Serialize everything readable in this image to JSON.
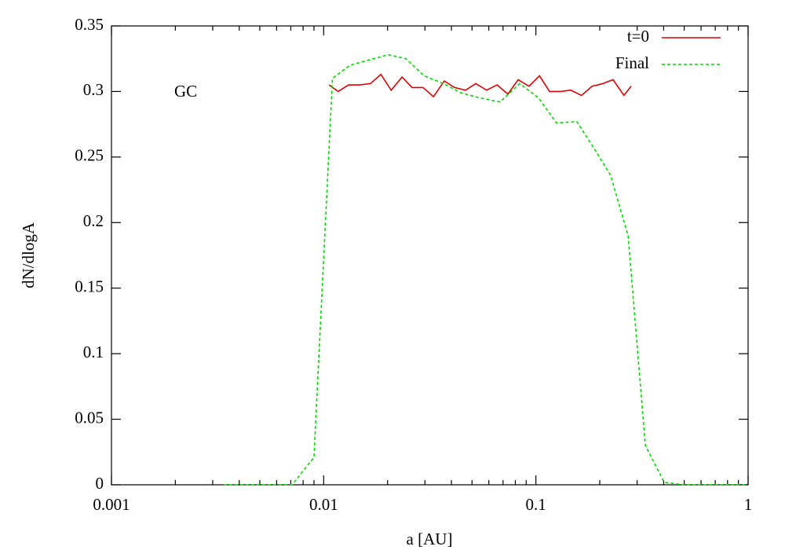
{
  "chart_data": {
    "type": "line",
    "xlabel": "a [AU]",
    "ylabel": "dN/dlogA",
    "annotation": "GC",
    "xscale": "log",
    "xlim": [
      0.001,
      1
    ],
    "xticks": [
      0.001,
      0.01,
      0.1,
      1
    ],
    "ylim": [
      0,
      0.35
    ],
    "yticks": [
      0,
      0.05,
      0.1,
      0.15,
      0.2,
      0.25,
      0.3,
      0.35
    ],
    "legend": "upper right",
    "series": [
      {
        "name": "t=0",
        "color": "#e00000",
        "dash": false,
        "x": [
          0.0106,
          0.0117,
          0.0131,
          0.0148,
          0.0166,
          0.0186,
          0.0208,
          0.0234,
          0.0261,
          0.0294,
          0.0329,
          0.037,
          0.0414,
          0.0466,
          0.0521,
          0.0587,
          0.0656,
          0.0738,
          0.0825,
          0.0929,
          0.104,
          0.116,
          0.131,
          0.146,
          0.164,
          0.184,
          0.207,
          0.231,
          0.26,
          0.281
        ],
        "values": [
          0.305,
          0.3,
          0.305,
          0.305,
          0.306,
          0.313,
          0.301,
          0.311,
          0.303,
          0.303,
          0.296,
          0.308,
          0.303,
          0.301,
          0.306,
          0.301,
          0.305,
          0.298,
          0.309,
          0.304,
          0.312,
          0.3,
          0.3,
          0.301,
          0.297,
          0.304,
          0.306,
          0.309,
          0.297,
          0.304
        ]
      },
      {
        "name": "Final",
        "color": "#00dd00",
        "dash": true,
        "x": [
          0.00338,
          0.00496,
          0.0071,
          0.009,
          0.011,
          0.0133,
          0.0163,
          0.0202,
          0.0244,
          0.0297,
          0.0367,
          0.0443,
          0.0548,
          0.0678,
          0.0839,
          0.103,
          0.125,
          0.156,
          0.189,
          0.225,
          0.272,
          0.328,
          0.402,
          0.493,
          0.665,
          0.975
        ],
        "values": [
          0,
          0,
          0,
          0.021,
          0.31,
          0.32,
          0.324,
          0.328,
          0.325,
          0.312,
          0.306,
          0.299,
          0.295,
          0.292,
          0.306,
          0.295,
          0.276,
          0.277,
          0.256,
          0.236,
          0.19,
          0.03,
          0.002,
          0,
          0,
          0
        ]
      }
    ]
  }
}
